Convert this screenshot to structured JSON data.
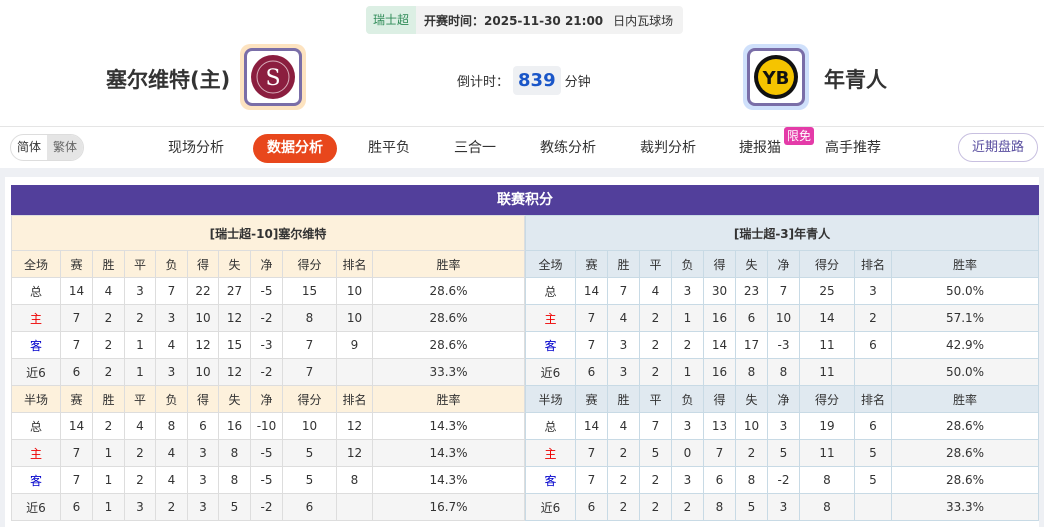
{
  "match": {
    "league": "瑞士超",
    "kickoff": "开赛时间：2025-11-30 21:00",
    "venue": "日内瓦球场",
    "home": {
      "name": "塞尔维特(主)",
      "logo_text": "SERVETTE FC GENEVE 1890",
      "logo_color": "#8b1e3f"
    },
    "away": {
      "name": "年青人",
      "logo_text": "YB",
      "logo_color": "#f5c400"
    },
    "countdown_label": "倒计时：",
    "countdown_value": "839",
    "countdown_unit": "分钟"
  },
  "lang": {
    "simplified": "简体",
    "traditional": "繁体"
  },
  "tabs": [
    {
      "label": "现场分析"
    },
    {
      "label": "数据分析",
      "active": true
    },
    {
      "label": "胜平负"
    },
    {
      "label": "三合一"
    },
    {
      "label": "教练分析"
    },
    {
      "label": "裁判分析"
    },
    {
      "label": "捷报猫"
    },
    {
      "label": "高手推荐"
    }
  ],
  "badge": "限免",
  "recent_button": "近期盘路",
  "standings": {
    "title": "联赛积分",
    "columns_full": [
      "全场",
      "赛",
      "胜",
      "平",
      "负",
      "得",
      "失",
      "净",
      "得分",
      "排名",
      "胜率"
    ],
    "columns_half": [
      "半场",
      "赛",
      "胜",
      "平",
      "负",
      "得",
      "失",
      "净",
      "得分",
      "排名",
      "胜率"
    ],
    "home": {
      "caption": "[瑞士超-10]塞尔维特",
      "full": [
        [
          "总",
          "14",
          "4",
          "3",
          "7",
          "22",
          "27",
          "-5",
          "15",
          "10",
          "28.6%"
        ],
        [
          "主",
          "7",
          "2",
          "2",
          "3",
          "10",
          "12",
          "-2",
          "8",
          "10",
          "28.6%"
        ],
        [
          "客",
          "7",
          "2",
          "1",
          "4",
          "12",
          "15",
          "-3",
          "7",
          "9",
          "28.6%"
        ],
        [
          "近6",
          "6",
          "2",
          "1",
          "3",
          "10",
          "12",
          "-2",
          "7",
          "",
          "33.3%"
        ]
      ],
      "half": [
        [
          "总",
          "14",
          "2",
          "4",
          "8",
          "6",
          "16",
          "-10",
          "10",
          "12",
          "14.3%"
        ],
        [
          "主",
          "7",
          "1",
          "2",
          "4",
          "3",
          "8",
          "-5",
          "5",
          "12",
          "14.3%"
        ],
        [
          "客",
          "7",
          "1",
          "2",
          "4",
          "3",
          "8",
          "-5",
          "5",
          "8",
          "14.3%"
        ],
        [
          "近6",
          "6",
          "1",
          "3",
          "2",
          "3",
          "5",
          "-2",
          "6",
          "",
          "16.7%"
        ]
      ]
    },
    "away": {
      "caption": "[瑞士超-3]年青人",
      "full": [
        [
          "总",
          "14",
          "7",
          "4",
          "3",
          "30",
          "23",
          "7",
          "25",
          "3",
          "50.0%"
        ],
        [
          "主",
          "7",
          "4",
          "2",
          "1",
          "16",
          "6",
          "10",
          "14",
          "2",
          "57.1%"
        ],
        [
          "客",
          "7",
          "3",
          "2",
          "2",
          "14",
          "17",
          "-3",
          "11",
          "6",
          "42.9%"
        ],
        [
          "近6",
          "6",
          "3",
          "2",
          "1",
          "16",
          "8",
          "8",
          "11",
          "",
          "50.0%"
        ]
      ],
      "half": [
        [
          "总",
          "14",
          "4",
          "7",
          "3",
          "13",
          "10",
          "3",
          "19",
          "6",
          "28.6%"
        ],
        [
          "主",
          "7",
          "2",
          "5",
          "0",
          "7",
          "2",
          "5",
          "11",
          "5",
          "28.6%"
        ],
        [
          "客",
          "7",
          "2",
          "2",
          "3",
          "6",
          "8",
          "-2",
          "8",
          "5",
          "28.6%"
        ],
        [
          "近6",
          "6",
          "2",
          "2",
          "2",
          "8",
          "5",
          "3",
          "8",
          "",
          "33.3%"
        ]
      ]
    }
  }
}
